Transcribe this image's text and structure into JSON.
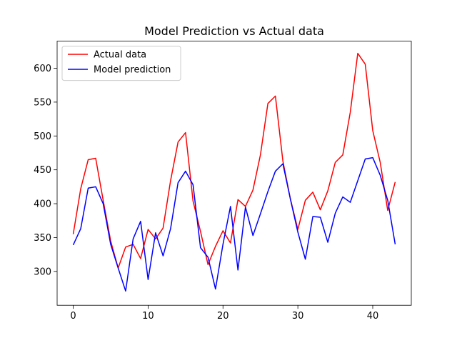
{
  "chart_data": {
    "type": "line",
    "title": "Model Prediction vs Actual data",
    "xlabel": "",
    "ylabel": "",
    "xlim": [
      -2.15,
      45.15
    ],
    "ylim": [
      250,
      640
    ],
    "x_ticks": [
      0,
      10,
      20,
      30,
      40
    ],
    "y_ticks": [
      300,
      350,
      400,
      450,
      500,
      550,
      600
    ],
    "grid": false,
    "legend_position": "upper-left",
    "series": [
      {
        "name": "Actual data",
        "color": "#ff0000",
        "x": [
          0,
          1,
          2,
          3,
          4,
          5,
          6,
          7,
          8,
          9,
          10,
          11,
          12,
          13,
          14,
          15,
          16,
          17,
          18,
          19,
          20,
          21,
          22,
          23,
          24,
          25,
          26,
          27,
          28,
          29,
          30,
          31,
          32,
          33,
          34,
          35,
          36,
          37,
          38,
          39,
          40,
          41,
          42,
          43
        ],
        "values": [
          355,
          422,
          465,
          467,
          405,
          345,
          305,
          336,
          340,
          319,
          362,
          348,
          364,
          434,
          491,
          505,
          404,
          359,
          310,
          337,
          360,
          342,
          406,
          396,
          420,
          472,
          548,
          559,
          463,
          407,
          362,
          405,
          417,
          391,
          419,
          461,
          472,
          535,
          622,
          606,
          508,
          461,
          390,
          432
        ]
      },
      {
        "name": "Model prediction",
        "color": "#0000ff",
        "x": [
          0,
          1,
          2,
          3,
          4,
          5,
          6,
          7,
          8,
          9,
          10,
          11,
          12,
          13,
          14,
          15,
          16,
          17,
          18,
          19,
          20,
          21,
          22,
          23,
          24,
          25,
          26,
          27,
          28,
          29,
          30,
          31,
          32,
          33,
          34,
          35,
          36,
          37,
          38,
          39,
          40,
          41,
          42,
          43
        ],
        "values": [
          339,
          363,
          423,
          425,
          400,
          340,
          305,
          271,
          348,
          374,
          288,
          357,
          323,
          363,
          431,
          448,
          428,
          335,
          321,
          274,
          340,
          396,
          302,
          395,
          353,
          385,
          418,
          448,
          459,
          407,
          358,
          318,
          381,
          380,
          343,
          386,
          410,
          402,
          434,
          466,
          468,
          442,
          405,
          340
        ]
      }
    ]
  }
}
